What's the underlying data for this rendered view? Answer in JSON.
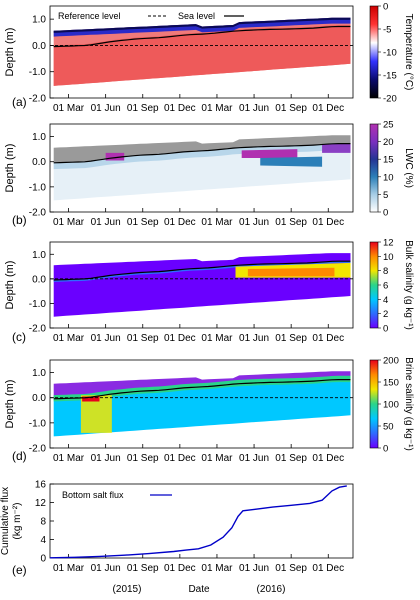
{
  "shared": {
    "x_ticks": [
      "01 Mar",
      "01 Jun",
      "01 Sep",
      "01 Dec",
      "01 Mar",
      "01 Jun",
      "01 Sep",
      "01 Dec"
    ],
    "x_year_labels": [
      "(2015)",
      "Date",
      "(2016)"
    ]
  },
  "chart_data": [
    {
      "type": "heatmap",
      "panel_label": "(a)",
      "ylabel": "Depth (m)",
      "y_ticks": [
        "1.0",
        "0.0",
        "-1.0",
        "-2.0"
      ],
      "ylim": [
        -2.0,
        1.5
      ],
      "legend": [
        {
          "name": "Reference level",
          "style": "dashed"
        },
        {
          "name": "Sea level",
          "style": "solid"
        }
      ],
      "colorbar": {
        "label": "Temperature (°C)",
        "ticks": [
          "0",
          "-5",
          "-10",
          "-15",
          "-20"
        ],
        "range": [
          -20,
          0
        ],
        "colors": [
          "#000000",
          "#0a0a6e",
          "#3232ff",
          "#ffffff",
          "#ff3333",
          "#cc0000"
        ]
      },
      "sea_level": [
        [
          0,
          -0.05
        ],
        [
          3,
          0.0
        ],
        [
          5,
          0.15
        ],
        [
          7,
          0.25
        ],
        [
          9,
          0.3
        ],
        [
          11,
          0.4
        ],
        [
          13,
          0.45
        ],
        [
          15,
          0.55
        ],
        [
          17,
          0.6
        ],
        [
          19,
          0.62
        ],
        [
          21,
          0.65
        ],
        [
          23,
          0.72
        ]
      ],
      "reference_level": 0.0
    },
    {
      "type": "heatmap",
      "panel_label": "(b)",
      "ylabel": "Depth (m)",
      "y_ticks": [
        "1.0",
        "0.0",
        "-1.0",
        "-2.0"
      ],
      "ylim": [
        -2.0,
        1.5
      ],
      "colorbar": {
        "label": "LWC (%)",
        "ticks": [
          "25",
          "20",
          "15",
          "10",
          "5",
          "0"
        ],
        "range": [
          0,
          25
        ],
        "colors": [
          "#ffffff",
          "#a6cde6",
          "#2c7fb8",
          "#253494",
          "#7b2fbf",
          "#b030b0"
        ]
      }
    },
    {
      "type": "heatmap",
      "panel_label": "(c)",
      "ylabel": "Depth (m)",
      "y_ticks": [
        "1.0",
        "0.0",
        "-1.0",
        "-2.0"
      ],
      "ylim": [
        -2.0,
        1.5
      ],
      "colorbar": {
        "label": "Bulk salinity (g kg⁻¹)",
        "ticks": [
          "12",
          "10",
          "8",
          "6",
          "4",
          "2",
          "0"
        ],
        "range": [
          0,
          12
        ],
        "colors": [
          "#6a00ff",
          "#2f6bff",
          "#00c8ff",
          "#2ad48a",
          "#f2e600",
          "#ff8a00",
          "#e8001c"
        ]
      }
    },
    {
      "type": "heatmap",
      "panel_label": "(d)",
      "ylabel": "Depth (m)",
      "y_ticks": [
        "1.0",
        "0.0",
        "-1.0",
        "-2.0"
      ],
      "ylim": [
        -2.0,
        1.5
      ],
      "colorbar": {
        "label": "Brine salinity (g kg⁻¹)",
        "ticks": [
          "200",
          "150",
          "100",
          "50",
          "0"
        ],
        "range": [
          0,
          200
        ],
        "colors": [
          "#6a00ff",
          "#2f6bff",
          "#00c8ff",
          "#2ad48a",
          "#f2e600",
          "#ff8a00",
          "#e8001c"
        ]
      }
    },
    {
      "type": "line",
      "panel_label": "(e)",
      "ylabel": "Cumulative flux (kg m⁻²)",
      "y_ticks": [
        "16",
        "12",
        "8",
        "4",
        "0"
      ],
      "ylim": [
        0,
        16
      ],
      "series": [
        {
          "name": "Bottom salt flux",
          "color": "#0000c8",
          "points": [
            [
              0,
              0.05
            ],
            [
              2,
              0.15
            ],
            [
              4,
              0.35
            ],
            [
              6,
              0.6
            ],
            [
              8,
              0.95
            ],
            [
              10,
              1.4
            ],
            [
              11,
              1.7
            ],
            [
              12,
              2.0
            ],
            [
              13,
              2.8
            ],
            [
              14,
              4.5
            ],
            [
              14.7,
              6.5
            ],
            [
              15.2,
              9.0
            ],
            [
              15.6,
              10.2
            ],
            [
              16.5,
              10.5
            ],
            [
              18,
              11.0
            ],
            [
              19.5,
              11.4
            ],
            [
              21,
              11.8
            ],
            [
              22,
              12.5
            ],
            [
              22.8,
              14.5
            ],
            [
              23.4,
              15.3
            ],
            [
              24,
              15.6
            ]
          ]
        }
      ]
    }
  ]
}
